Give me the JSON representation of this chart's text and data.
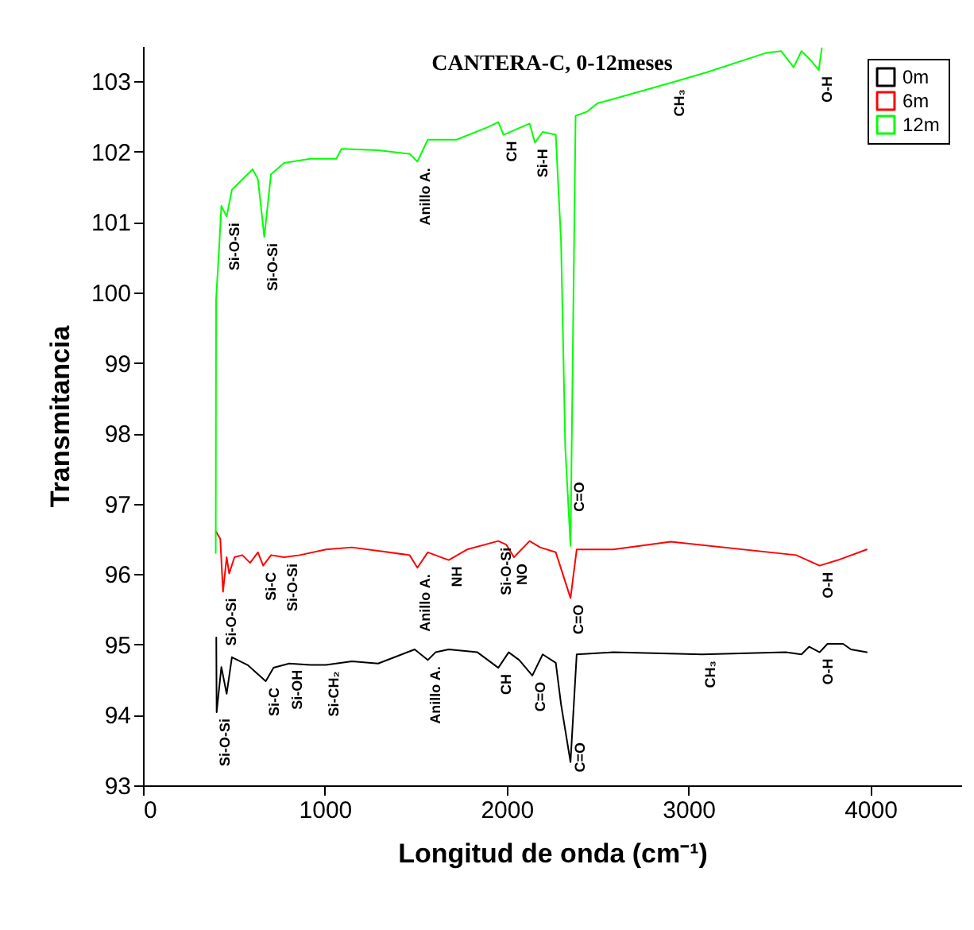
{
  "chart_data": {
    "type": "line",
    "title": "CANTERA-C, 0-12meses",
    "xlabel": "Longitud de onda (cm⁻¹)",
    "ylabel": "Transmitancia",
    "xlim": [
      0,
      4500
    ],
    "xticks": [
      0,
      1000,
      2000,
      3000,
      4000
    ],
    "ylim": [
      93,
      103.5
    ],
    "yticks": [
      93,
      94,
      95,
      96,
      97,
      98,
      99,
      100,
      101,
      102,
      103
    ],
    "legend": "top right",
    "grid": false,
    "series": [
      {
        "name": "0m",
        "color": "#000000",
        "x": [
          403,
          405,
          431,
          460,
          489,
          575,
          675,
          718,
          804,
          920,
          1006,
          1149,
          1293,
          1494,
          1566,
          1609,
          1681,
          1839,
          1954,
          2011,
          2069,
          2141,
          2198,
          2270,
          2299,
          2351,
          2385,
          2586,
          3075,
          3534,
          3621,
          3664,
          3721,
          3764,
          3850,
          3893,
          3980
        ],
        "values": [
          95.1,
          94.04,
          94.68,
          94.3,
          94.82,
          94.71,
          94.48,
          94.67,
          94.73,
          94.71,
          94.71,
          94.76,
          94.73,
          94.93,
          94.78,
          94.89,
          94.93,
          94.89,
          94.67,
          94.89,
          94.78,
          94.56,
          94.86,
          94.74,
          94.15,
          93.33,
          94.86,
          94.89,
          94.86,
          94.89,
          94.86,
          94.97,
          94.89,
          95.01,
          95.01,
          94.93,
          94.89
        ]
      },
      {
        "name": "6m",
        "color": "#ff0000",
        "x": [
          400,
          425,
          440,
          460,
          474,
          503,
          546,
          589,
          632,
          661,
          704,
          776,
          862,
          1006,
          1149,
          1351,
          1466,
          1509,
          1566,
          1681,
          1782,
          1954,
          1997,
          2040,
          2126,
          2184,
          2270,
          2351,
          2385,
          2586,
          2902,
          3592,
          3721,
          3822,
          3980
        ],
        "values": [
          96.61,
          96.5,
          95.75,
          96.24,
          96.01,
          96.24,
          96.27,
          96.16,
          96.31,
          96.12,
          96.27,
          96.24,
          96.27,
          96.35,
          96.38,
          96.31,
          96.27,
          96.09,
          96.31,
          96.2,
          96.35,
          96.47,
          96.42,
          96.24,
          96.47,
          96.38,
          96.31,
          95.66,
          96.35,
          96.35,
          96.46,
          96.27,
          96.12,
          96.2,
          96.35
        ]
      },
      {
        "name": "12m",
        "color": "#00ff00",
        "x": [
          400,
          402,
          417,
          431,
          460,
          489,
          603,
          632,
          667,
          704,
          776,
          920,
          1063,
          1092,
          1293,
          1466,
          1509,
          1566,
          1724,
          1897,
          1954,
          1983,
          2126,
          2155,
          2198,
          2270,
          2299,
          2322,
          2351,
          2379,
          2443,
          2500,
          2560,
          2905,
          3103,
          3422,
          3509,
          3578,
          3621,
          3672,
          3716,
          3733
        ],
        "values": [
          96.3,
          99.9,
          100.56,
          101.23,
          101.08,
          101.46,
          101.75,
          101.61,
          100.79,
          101.68,
          101.84,
          101.9,
          101.9,
          102.04,
          102.02,
          101.97,
          101.86,
          102.17,
          102.17,
          102.35,
          102.42,
          102.24,
          102.4,
          102.13,
          102.28,
          102.24,
          100.72,
          97.81,
          96.4,
          102.51,
          102.57,
          102.69,
          102.73,
          102.98,
          103.13,
          103.4,
          103.43,
          103.2,
          103.43,
          103.3,
          103.16,
          103.47
        ]
      }
    ],
    "annotations": [
      {
        "text": "Si-O-Si",
        "x": 460,
        "y": 101.08
      },
      {
        "text": "Si-O-Si",
        "x": 667,
        "y": 100.79
      },
      {
        "text": "Anillo A.",
        "x": 1509,
        "y": 101.86
      },
      {
        "text": "CH",
        "x": 1983,
        "y": 102.24
      },
      {
        "text": "Si-H",
        "x": 2155,
        "y": 102.13
      },
      {
        "text": "C=O",
        "x": 2356,
        "y": 97.4
      },
      {
        "text": "CH₃",
        "x": 2905,
        "y": 102.98
      },
      {
        "text": "O-H",
        "x": 3716,
        "y": 103.16
      },
      {
        "text": "Si-O-Si",
        "x": 440,
        "y": 95.75
      },
      {
        "text": "Si-C",
        "x": 661,
        "y": 96.12
      },
      {
        "text": "Si-O-Si",
        "x": 776,
        "y": 96.24
      },
      {
        "text": "Anillo A.",
        "x": 1509,
        "y": 96.09
      },
      {
        "text": "NH",
        "x": 1681,
        "y": 96.2
      },
      {
        "text": "Si-O-Si",
        "x": 1954,
        "y": 96.47
      },
      {
        "text": "NO",
        "x": 2040,
        "y": 96.24
      },
      {
        "text": "C=O",
        "x": 2351,
        "y": 95.66
      },
      {
        "text": "O-H",
        "x": 3721,
        "y": 96.12
      },
      {
        "text": "Si-O-Si",
        "x": 405,
        "y": 94.04
      },
      {
        "text": "Si-C",
        "x": 675,
        "y": 94.48
      },
      {
        "text": "Si-OH",
        "x": 804,
        "y": 94.73
      },
      {
        "text": "Si-CH₂",
        "x": 1006,
        "y": 94.71
      },
      {
        "text": "Anillo A.",
        "x": 1566,
        "y": 94.78
      },
      {
        "text": "CH",
        "x": 1954,
        "y": 94.67
      },
      {
        "text": "C=O",
        "x": 2141,
        "y": 94.56
      },
      {
        "text": "C=O",
        "x": 2359,
        "y": 93.7
      },
      {
        "text": "CH₃",
        "x": 3075,
        "y": 94.86
      },
      {
        "text": "O-H",
        "x": 3721,
        "y": 94.89
      }
    ]
  }
}
